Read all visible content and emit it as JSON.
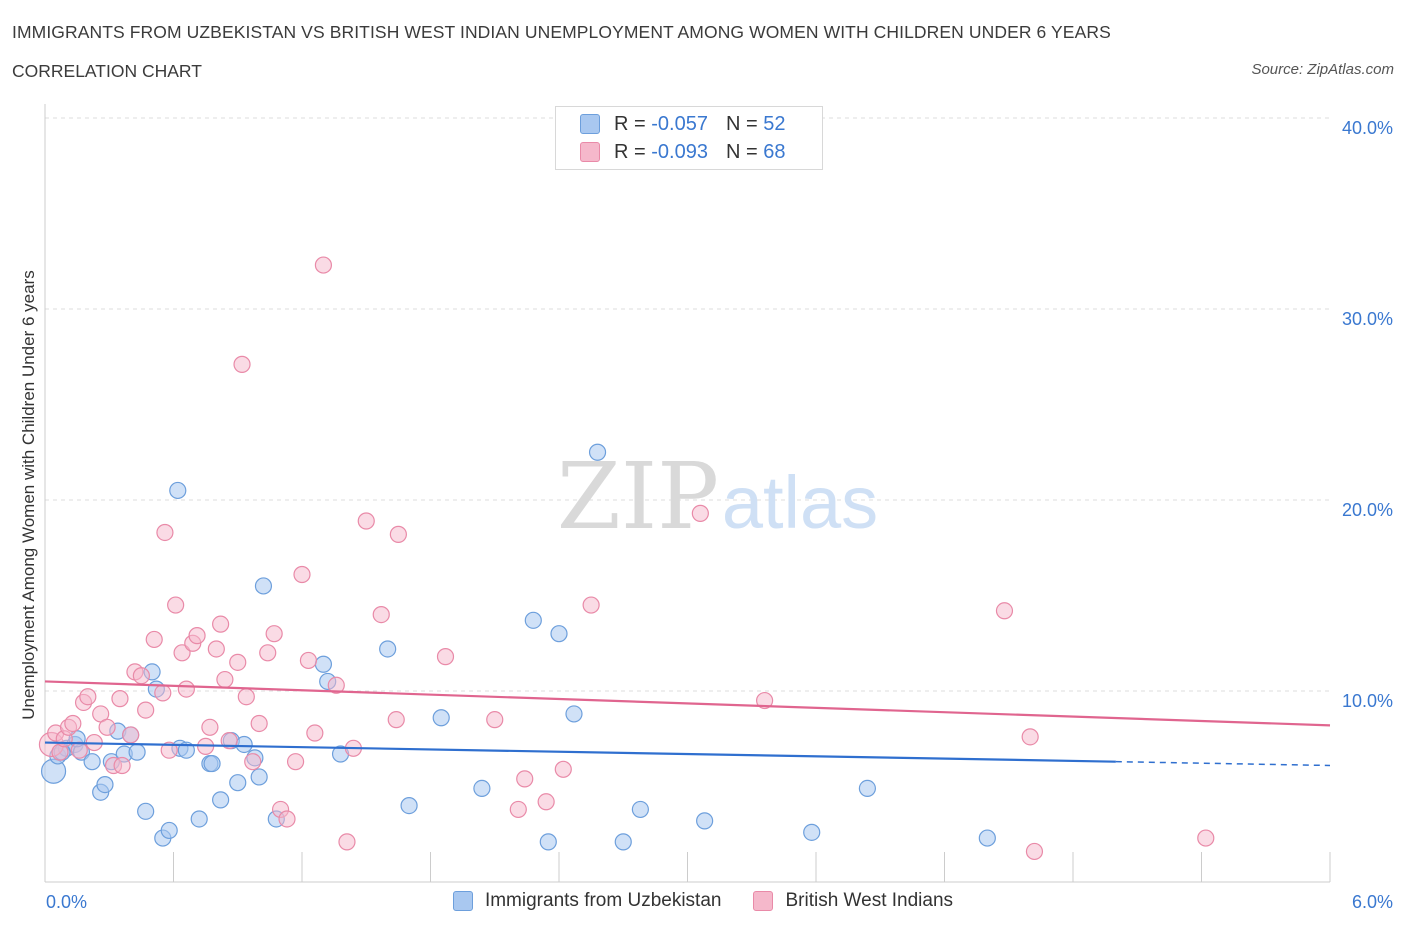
{
  "header": {
    "title": "IMMIGRANTS FROM UZBEKISTAN VS BRITISH WEST INDIAN UNEMPLOYMENT AMONG WOMEN WITH CHILDREN UNDER 6 YEARS",
    "subtitle": "CORRELATION CHART",
    "source": "Source: ZipAtlas.com"
  },
  "watermark": {
    "zip": "ZIP",
    "atlas": "atlas"
  },
  "legend": {
    "r_label": "R = ",
    "n_label": "N = ",
    "rows": [
      {
        "r": "-0.057",
        "n": "52",
        "color": "#a9c8f0"
      },
      {
        "r": "-0.093",
        "n": "68",
        "color": "#f5b8cb"
      }
    ]
  },
  "colors": {
    "blue_fill": "#a9c8f0",
    "blue_stroke": "#6d9fdc",
    "blue_line": "#2f6fcf",
    "pink_fill": "#f5b8cb",
    "pink_stroke": "#e98aa8",
    "pink_line": "#e0658f",
    "tick_label": "#3a78d0",
    "grid": "#dddddd"
  },
  "chart_data": {
    "type": "scatter",
    "title": "IMMIGRANTS FROM UZBEKISTAN VS BRITISH WEST INDIAN UNEMPLOYMENT AMONG WOMEN WITH CHILDREN UNDER 6 YEARS",
    "ylabel": "Unemployment Among Women with Children Under 6 years",
    "xlabel": "",
    "xlim": [
      0,
      6
    ],
    "ylim": [
      0,
      40
    ],
    "x_tick_labels": [
      "0.0%",
      "6.0%"
    ],
    "y_tick_labels": [
      "10.0%",
      "20.0%",
      "30.0%",
      "40.0%"
    ],
    "y_ticks": [
      10,
      20,
      30,
      40
    ],
    "grid": true,
    "legend_position": "top-center",
    "series": [
      {
        "name": "Immigrants from Uzbekistan",
        "trend": {
          "x": [
            0,
            5.0
          ],
          "y": [
            7.3,
            6.3
          ],
          "dashed_to": [
            6.0,
            6.1
          ]
        },
        "points": [
          [
            0.04,
            5.8
          ],
          [
            0.06,
            6.6
          ],
          [
            0.1,
            7.0
          ],
          [
            0.14,
            7.2
          ],
          [
            0.17,
            6.8
          ],
          [
            0.22,
            6.3
          ],
          [
            0.26,
            4.7
          ],
          [
            0.28,
            5.1
          ],
          [
            0.31,
            6.3
          ],
          [
            0.34,
            7.9
          ],
          [
            0.37,
            6.7
          ],
          [
            0.4,
            7.7
          ],
          [
            0.43,
            6.8
          ],
          [
            0.47,
            3.7
          ],
          [
            0.5,
            11.0
          ],
          [
            0.52,
            10.1
          ],
          [
            0.55,
            2.3
          ],
          [
            0.58,
            2.7
          ],
          [
            0.62,
            20.5
          ],
          [
            0.63,
            7.0
          ],
          [
            0.66,
            6.9
          ],
          [
            0.72,
            3.3
          ],
          [
            0.77,
            6.2
          ],
          [
            0.78,
            6.2
          ],
          [
            0.82,
            4.3
          ],
          [
            0.87,
            7.4
          ],
          [
            0.9,
            5.2
          ],
          [
            0.93,
            7.2
          ],
          [
            0.98,
            6.5
          ],
          [
            1.0,
            5.5
          ],
          [
            1.02,
            15.5
          ],
          [
            1.08,
            3.3
          ],
          [
            1.3,
            11.4
          ],
          [
            1.32,
            10.5
          ],
          [
            1.38,
            6.7
          ],
          [
            1.6,
            12.2
          ],
          [
            1.7,
            4.0
          ],
          [
            1.85,
            8.6
          ],
          [
            2.04,
            4.9
          ],
          [
            2.28,
            13.7
          ],
          [
            2.35,
            2.1
          ],
          [
            2.4,
            13.0
          ],
          [
            2.47,
            8.8
          ],
          [
            2.58,
            22.5
          ],
          [
            2.7,
            2.1
          ],
          [
            2.78,
            3.8
          ],
          [
            3.08,
            3.2
          ],
          [
            3.58,
            2.6
          ],
          [
            3.84,
            4.9
          ],
          [
            4.4,
            2.3
          ],
          [
            0.08,
            6.8
          ],
          [
            0.15,
            7.5
          ]
        ]
      },
      {
        "name": "British West Indians",
        "trend": {
          "x": [
            0,
            6.0
          ],
          "y": [
            10.5,
            8.2
          ]
        },
        "points": [
          [
            0.03,
            7.2
          ],
          [
            0.05,
            7.8
          ],
          [
            0.07,
            6.8
          ],
          [
            0.09,
            7.5
          ],
          [
            0.11,
            8.1
          ],
          [
            0.13,
            8.3
          ],
          [
            0.16,
            6.9
          ],
          [
            0.18,
            9.4
          ],
          [
            0.2,
            9.7
          ],
          [
            0.23,
            7.3
          ],
          [
            0.26,
            8.8
          ],
          [
            0.29,
            8.1
          ],
          [
            0.32,
            6.1
          ],
          [
            0.35,
            9.6
          ],
          [
            0.36,
            6.1
          ],
          [
            0.4,
            7.7
          ],
          [
            0.42,
            11.0
          ],
          [
            0.45,
            10.8
          ],
          [
            0.47,
            9.0
          ],
          [
            0.51,
            12.7
          ],
          [
            0.55,
            9.9
          ],
          [
            0.56,
            18.3
          ],
          [
            0.58,
            6.9
          ],
          [
            0.61,
            14.5
          ],
          [
            0.64,
            12.0
          ],
          [
            0.66,
            10.1
          ],
          [
            0.69,
            12.5
          ],
          [
            0.71,
            12.9
          ],
          [
            0.75,
            7.1
          ],
          [
            0.77,
            8.1
          ],
          [
            0.8,
            12.2
          ],
          [
            0.82,
            13.5
          ],
          [
            0.84,
            10.6
          ],
          [
            0.86,
            7.4
          ],
          [
            0.9,
            11.5
          ],
          [
            0.94,
            9.7
          ],
          [
            0.97,
            6.3
          ],
          [
            1.0,
            8.3
          ],
          [
            1.04,
            12.0
          ],
          [
            1.07,
            13.0
          ],
          [
            1.1,
            3.8
          ],
          [
            1.13,
            3.3
          ],
          [
            1.17,
            6.3
          ],
          [
            1.2,
            16.1
          ],
          [
            1.23,
            11.6
          ],
          [
            1.26,
            7.8
          ],
          [
            1.3,
            32.3
          ],
          [
            1.36,
            10.3
          ],
          [
            1.41,
            2.1
          ],
          [
            1.44,
            7.0
          ],
          [
            1.5,
            18.9
          ],
          [
            1.57,
            14.0
          ],
          [
            1.64,
            8.5
          ],
          [
            1.65,
            18.2
          ],
          [
            1.87,
            11.8
          ],
          [
            2.1,
            8.5
          ],
          [
            2.21,
            3.8
          ],
          [
            2.24,
            5.4
          ],
          [
            2.34,
            4.2
          ],
          [
            2.42,
            5.9
          ],
          [
            2.55,
            14.5
          ],
          [
            3.06,
            19.3
          ],
          [
            3.36,
            9.5
          ],
          [
            4.48,
            14.2
          ],
          [
            4.6,
            7.6
          ],
          [
            4.62,
            1.6
          ],
          [
            5.42,
            2.3
          ],
          [
            0.92,
            27.1
          ]
        ]
      }
    ]
  }
}
